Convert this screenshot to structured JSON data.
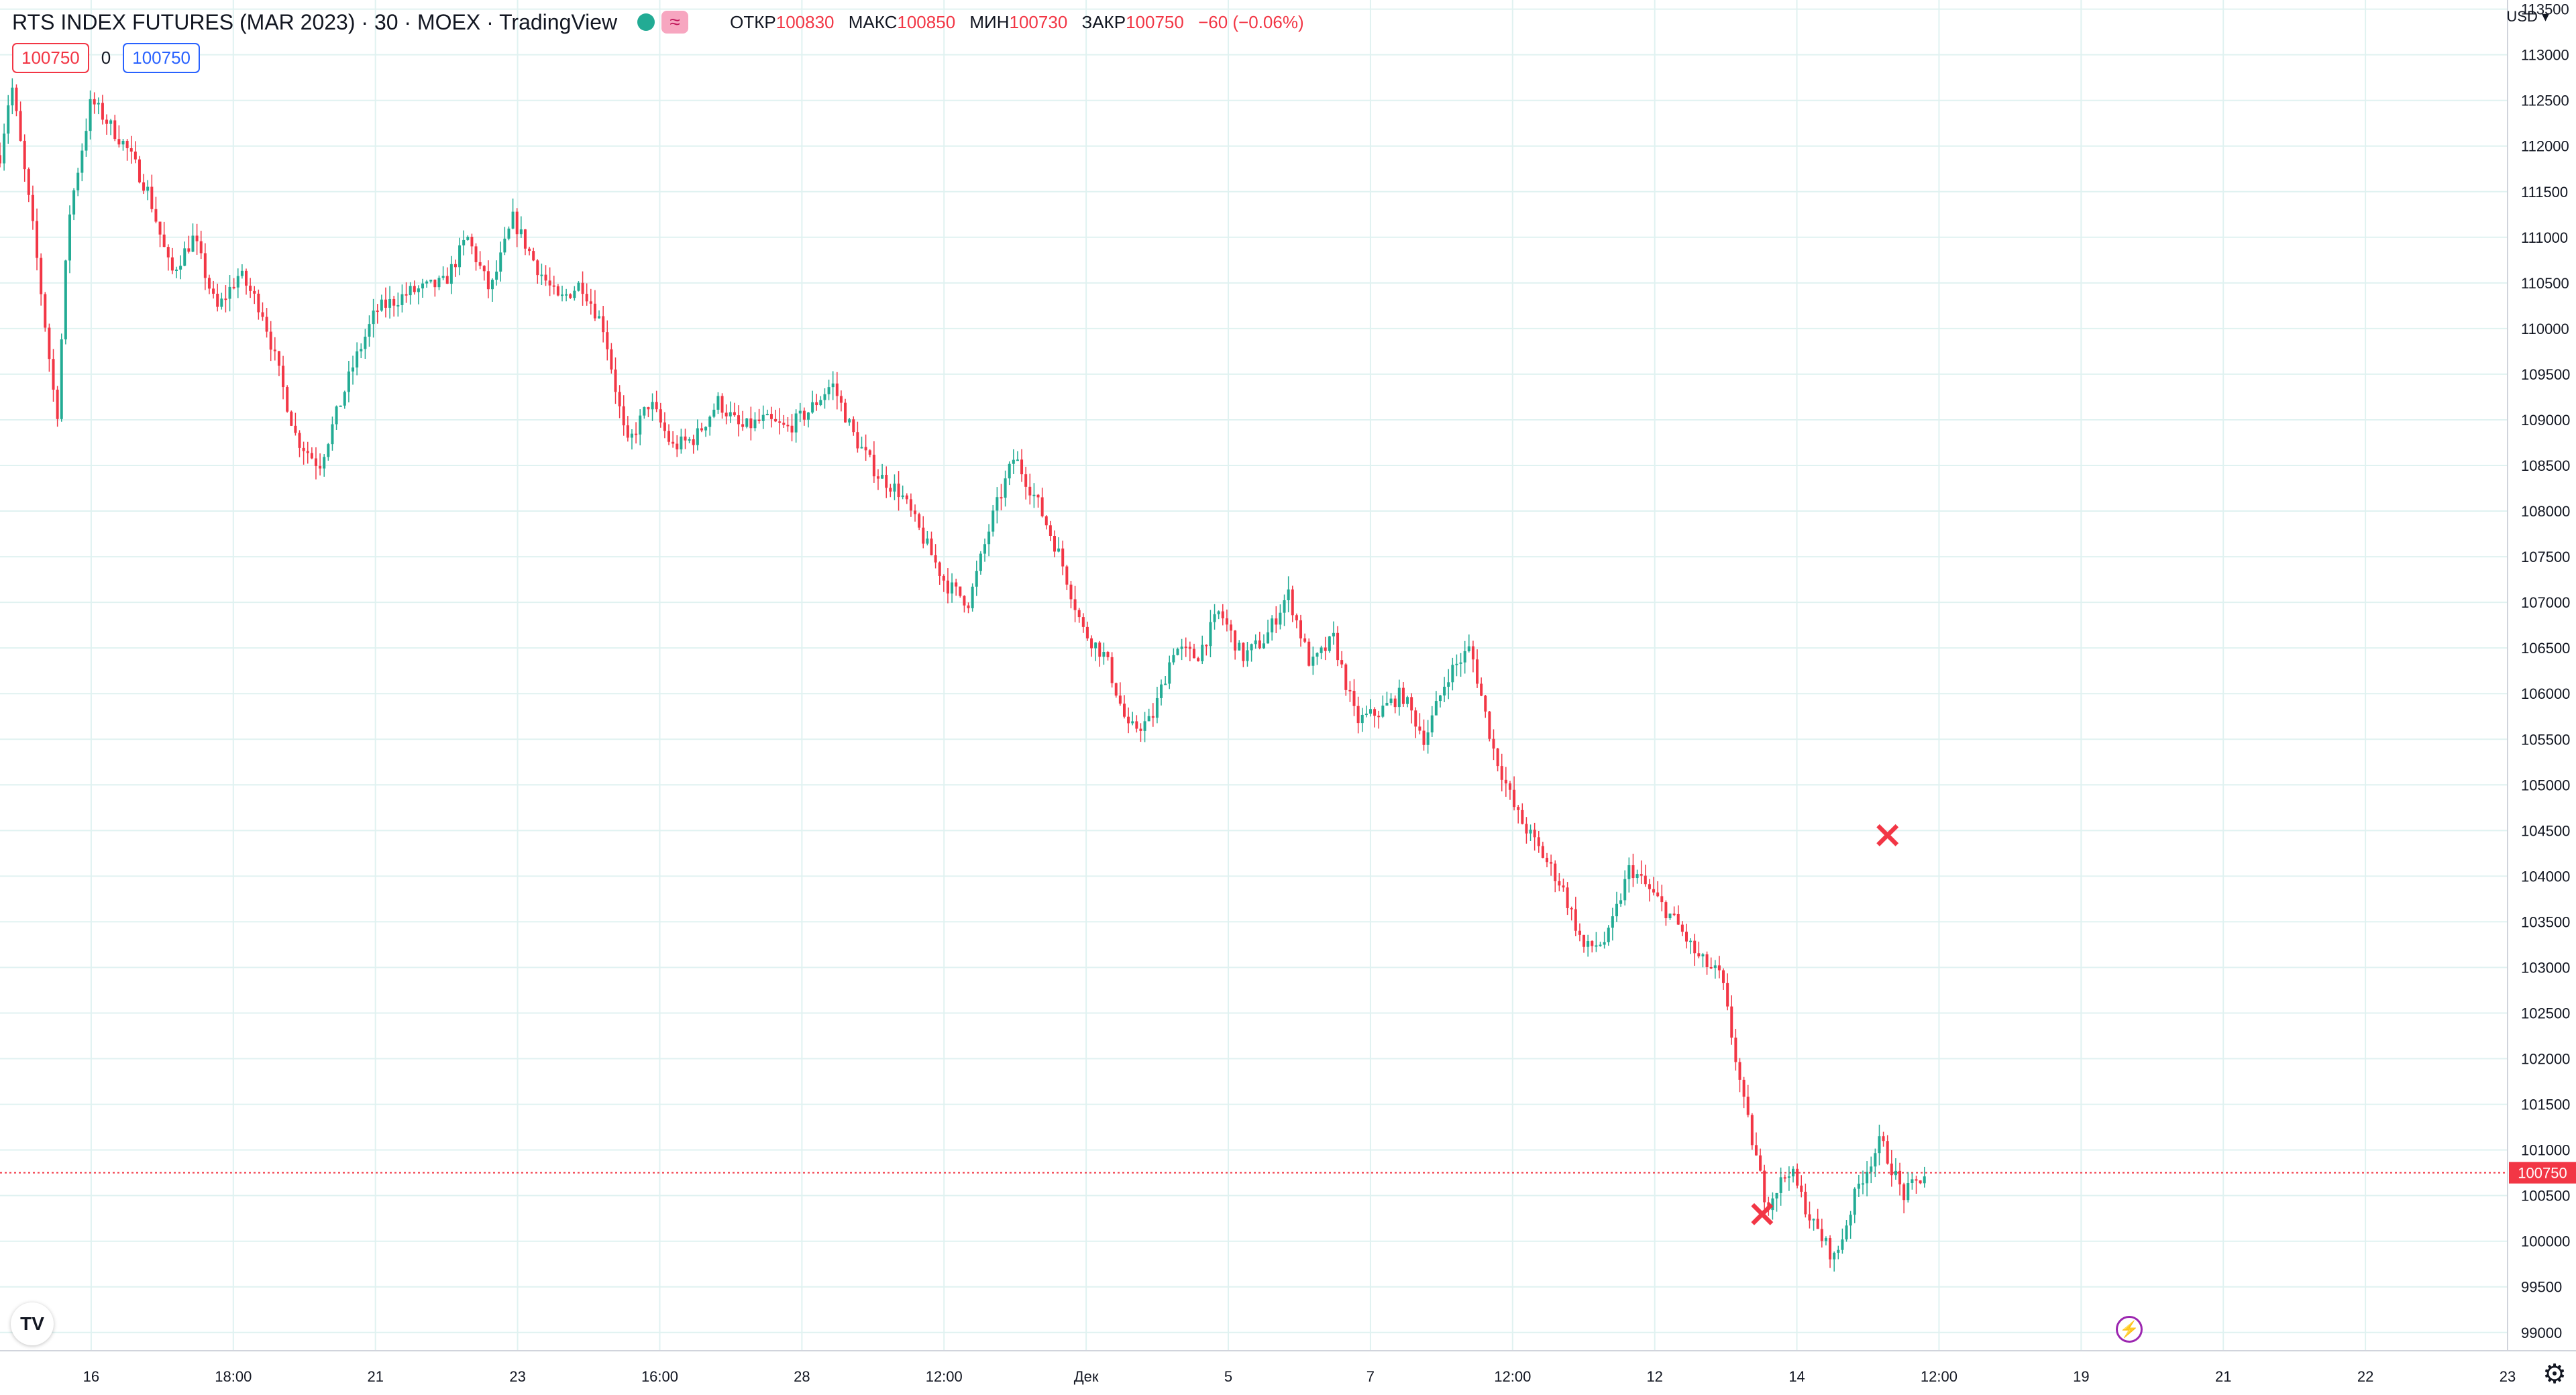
{
  "header": {
    "title": "RTS INDEX FUTURES (MAR 2023) · 30 · MOEX · TradingView",
    "approx_symbol": "≈",
    "open_label": "ОТКР",
    "open_value": "100830",
    "high_label": "МАКС",
    "high_value": "100850",
    "low_label": "МИН",
    "low_value": "100730",
    "close_label": "ЗАКР",
    "close_value": "100750",
    "change": "−60 (−0.06%)"
  },
  "trade": {
    "sell_price": "100750",
    "spread": "0",
    "buy_price": "100750"
  },
  "currency": "USD ▾",
  "logo_text": "TV",
  "settings_icon": "⚙",
  "bolt_icon": "⚡",
  "colors": {
    "up": "#22ab94",
    "down": "#f23645",
    "grid": "#e0f2f1",
    "price_line": "#f23645",
    "marker": "#f23645"
  },
  "chart_data": {
    "type": "candlestick",
    "interval": "30",
    "ylim": [
      98800,
      113600
    ],
    "y_ticks": [
      113500,
      113000,
      112500,
      112000,
      111500,
      111000,
      110500,
      110000,
      109500,
      109000,
      108500,
      108000,
      107500,
      107000,
      106500,
      106000,
      105500,
      105000,
      104500,
      104000,
      103500,
      103000,
      102500,
      102000,
      101500,
      101000,
      100500,
      100000,
      99500,
      99000
    ],
    "x_ticks": [
      "16",
      "18:00",
      "21",
      "23",
      "16:00",
      "28",
      "12:00",
      "Дек",
      "5",
      "7",
      "12:00",
      "12",
      "14",
      "12:00",
      "19",
      "21",
      "22",
      "23"
    ],
    "last_price": 100750,
    "price_path": [
      [
        0,
        111900
      ],
      [
        0.5,
        112700
      ],
      [
        1.5,
        111000
      ],
      [
        2.5,
        109000
      ],
      [
        3,
        111200
      ],
      [
        4,
        112500
      ],
      [
        5.5,
        112000
      ],
      [
        6.5,
        111500
      ],
      [
        7.5,
        110600
      ],
      [
        8.5,
        111000
      ],
      [
        9.5,
        110200
      ],
      [
        10.5,
        110600
      ],
      [
        11.5,
        110200
      ],
      [
        13,
        108800
      ],
      [
        14,
        108500
      ],
      [
        15.5,
        109600
      ],
      [
        16.5,
        110200
      ],
      [
        18,
        110400
      ],
      [
        19.5,
        110500
      ],
      [
        20.5,
        111000
      ],
      [
        21.5,
        110400
      ],
      [
        22.5,
        111200
      ],
      [
        23.5,
        110700
      ],
      [
        24.5,
        110300
      ],
      [
        25.5,
        110500
      ],
      [
        26.5,
        110000
      ],
      [
        27.5,
        108700
      ],
      [
        28.5,
        109200
      ],
      [
        29.5,
        108700
      ],
      [
        30.5,
        108800
      ],
      [
        31.5,
        109200
      ],
      [
        32.5,
        108900
      ],
      [
        33.5,
        109000
      ],
      [
        34.5,
        108900
      ],
      [
        35.5,
        109100
      ],
      [
        36.5,
        109400
      ],
      [
        37.5,
        108800
      ],
      [
        38.5,
        108400
      ],
      [
        39.5,
        108200
      ],
      [
        40.5,
        107700
      ],
      [
        41.5,
        107200
      ],
      [
        42.5,
        107000
      ],
      [
        43.5,
        107900
      ],
      [
        44.5,
        108600
      ],
      [
        45.5,
        108100
      ],
      [
        46.5,
        107500
      ],
      [
        47.5,
        106700
      ],
      [
        48.5,
        106400
      ],
      [
        49.5,
        105600
      ],
      [
        50.5,
        105700
      ],
      [
        51.5,
        106500
      ],
      [
        52.5,
        106400
      ],
      [
        53.5,
        106900
      ],
      [
        54.5,
        106400
      ],
      [
        55.5,
        106600
      ],
      [
        56.5,
        107100
      ],
      [
        57.5,
        106300
      ],
      [
        58.5,
        106600
      ],
      [
        59.5,
        105700
      ],
      [
        60.5,
        105800
      ],
      [
        61.5,
        106000
      ],
      [
        62.5,
        105500
      ],
      [
        63.5,
        106200
      ],
      [
        64.5,
        106500
      ],
      [
        65.5,
        105400
      ],
      [
        66.5,
        104700
      ],
      [
        67.5,
        104300
      ],
      [
        68.5,
        103900
      ],
      [
        69.5,
        103200
      ],
      [
        70.5,
        103300
      ],
      [
        71.5,
        104100
      ],
      [
        72.5,
        103800
      ],
      [
        73.5,
        103500
      ],
      [
        74.5,
        103100
      ],
      [
        75.5,
        102900
      ],
      [
        76.5,
        101500
      ],
      [
        77.5,
        100400
      ],
      [
        78.5,
        100800
      ],
      [
        79.5,
        100200
      ],
      [
        80.5,
        99800
      ],
      [
        81.5,
        100600
      ],
      [
        82.5,
        101100
      ],
      [
        83.5,
        100500
      ],
      [
        84.5,
        100750
      ]
    ],
    "markers": [
      {
        "label": "×",
        "x": 77.3,
        "y": 100300
      },
      {
        "label": "×",
        "x": 82.8,
        "y": 104450
      }
    ]
  }
}
